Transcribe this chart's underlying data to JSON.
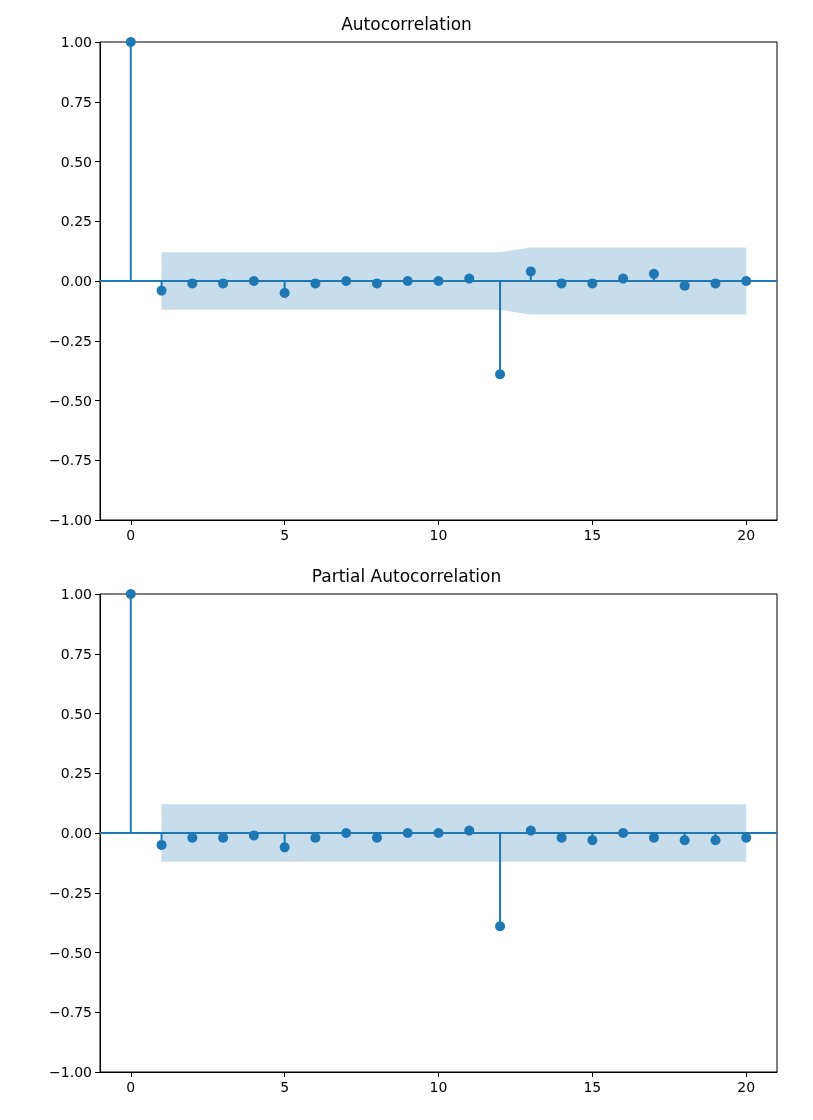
{
  "chart_data": [
    {
      "type": "lollipop",
      "title": "Autocorrelation",
      "x": [
        0,
        1,
        2,
        3,
        4,
        5,
        6,
        7,
        8,
        9,
        10,
        11,
        12,
        13,
        14,
        15,
        16,
        17,
        18,
        19,
        20
      ],
      "series": [
        {
          "color": "#1f77b4",
          "values": [
            1.0,
            -0.04,
            -0.01,
            -0.01,
            0.0,
            -0.05,
            -0.01,
            0.0,
            -0.01,
            0.0,
            0.0,
            0.01,
            -0.39,
            0.04,
            -0.01,
            -0.01,
            0.01,
            0.03,
            -0.02,
            -0.01,
            0.0
          ],
          "lower": [
            null,
            -0.12,
            -0.12,
            -0.12,
            -0.12,
            -0.12,
            -0.12,
            -0.12,
            -0.12,
            -0.12,
            -0.12,
            -0.12,
            -0.12,
            -0.14,
            -0.14,
            -0.14,
            -0.14,
            -0.14,
            -0.14,
            -0.14,
            -0.14
          ],
          "upper": [
            null,
            0.12,
            0.12,
            0.12,
            0.12,
            0.12,
            0.12,
            0.12,
            0.12,
            0.12,
            0.12,
            0.12,
            0.12,
            0.14,
            0.14,
            0.14,
            0.14,
            0.14,
            0.14,
            0.14,
            0.14
          ]
        }
      ],
      "marker": "circle",
      "ref_lines": [
        {
          "axis": "y",
          "value": 0,
          "color": "#1f77b4"
        }
      ],
      "xlim": [
        -1,
        21
      ],
      "xticks": [
        0,
        5,
        10,
        15,
        20
      ],
      "ylim": [
        -1,
        1
      ],
      "yticks": [
        {
          "value": -1,
          "label": "−1.00"
        },
        {
          "value": -0.75,
          "label": "−0.75"
        },
        {
          "value": -0.5,
          "label": "−0.50"
        },
        {
          "value": -0.25,
          "label": "−0.25"
        },
        {
          "value": 0,
          "label": "0.00"
        },
        {
          "value": 0.25,
          "label": "0.25"
        },
        {
          "value": 0.5,
          "label": "0.50"
        },
        {
          "value": 0.75,
          "label": "0.75"
        },
        {
          "value": 1,
          "label": "1.00"
        }
      ],
      "grid": false
    },
    {
      "type": "lollipop",
      "title": "Partial Autocorrelation",
      "x": [
        0,
        1,
        2,
        3,
        4,
        5,
        6,
        7,
        8,
        9,
        10,
        11,
        12,
        13,
        14,
        15,
        16,
        17,
        18,
        19,
        20
      ],
      "series": [
        {
          "color": "#1f77b4",
          "values": [
            1.0,
            -0.05,
            -0.02,
            -0.02,
            -0.01,
            -0.06,
            -0.02,
            0.0,
            -0.02,
            0.0,
            0.0,
            0.01,
            -0.39,
            0.01,
            -0.02,
            -0.03,
            0.0,
            -0.02,
            -0.03,
            -0.03,
            -0.02
          ],
          "lower": [
            null,
            -0.12,
            -0.12,
            -0.12,
            -0.12,
            -0.12,
            -0.12,
            -0.12,
            -0.12,
            -0.12,
            -0.12,
            -0.12,
            -0.12,
            -0.12,
            -0.12,
            -0.12,
            -0.12,
            -0.12,
            -0.12,
            -0.12,
            -0.12
          ],
          "upper": [
            null,
            0.12,
            0.12,
            0.12,
            0.12,
            0.12,
            0.12,
            0.12,
            0.12,
            0.12,
            0.12,
            0.12,
            0.12,
            0.12,
            0.12,
            0.12,
            0.12,
            0.12,
            0.12,
            0.12,
            0.12
          ]
        }
      ],
      "marker": "circle",
      "ref_lines": [
        {
          "axis": "y",
          "value": 0,
          "color": "#1f77b4"
        }
      ],
      "xlim": [
        -1,
        21
      ],
      "xticks": [
        0,
        5,
        10,
        15,
        20
      ],
      "ylim": [
        -1,
        1
      ],
      "yticks": [
        {
          "value": -1,
          "label": "−1.00"
        },
        {
          "value": -0.75,
          "label": "−0.75"
        },
        {
          "value": -0.5,
          "label": "−0.50"
        },
        {
          "value": -0.25,
          "label": "−0.25"
        },
        {
          "value": 0,
          "label": "0.00"
        },
        {
          "value": 0.25,
          "label": "0.25"
        },
        {
          "value": 0.5,
          "label": "0.50"
        },
        {
          "value": 0.75,
          "label": "0.75"
        },
        {
          "value": 1,
          "label": "1.00"
        }
      ],
      "grid": false
    }
  ]
}
